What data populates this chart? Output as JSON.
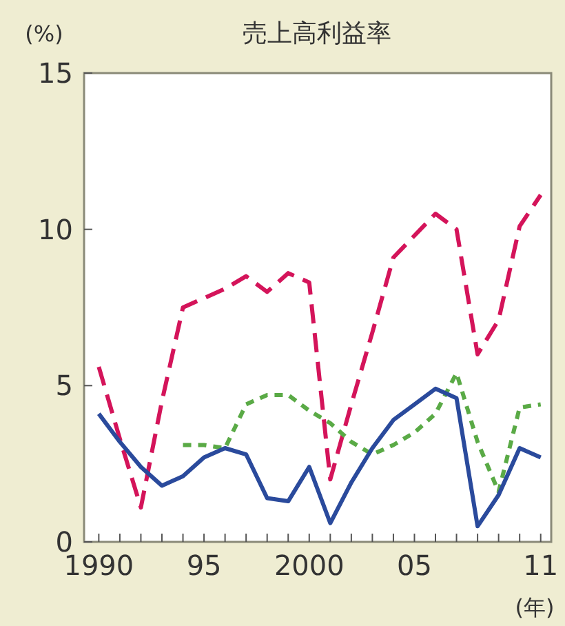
{
  "chart_data": {
    "type": "line",
    "title": "売上高利益率",
    "ylabel": "(%)",
    "xlabel": "(年)",
    "x": [
      1990,
      1991,
      1992,
      1993,
      1994,
      1995,
      1996,
      1997,
      1998,
      1999,
      2000,
      2001,
      2002,
      2003,
      2004,
      2005,
      2006,
      2007,
      2008,
      2009,
      2010,
      2011
    ],
    "series": [
      {
        "color": "#d4145a",
        "line_style": "dashed",
        "values": [
          5.6,
          3.3,
          1.1,
          4.5,
          7.5,
          7.8,
          8.1,
          8.5,
          8.0,
          8.6,
          8.3,
          2.0,
          4.4,
          6.7,
          9.1,
          9.8,
          10.5,
          10.0,
          6.0,
          7.1,
          10.1,
          11.1
        ]
      },
      {
        "color": "#5aaa46",
        "line_style": "dotted",
        "values": [
          null,
          null,
          null,
          null,
          3.1,
          3.1,
          3.0,
          4.4,
          4.7,
          4.7,
          4.2,
          3.8,
          3.2,
          2.8,
          3.1,
          3.5,
          4.1,
          5.4,
          3.2,
          1.6,
          4.3,
          4.4
        ]
      },
      {
        "color": "#2a4a9c",
        "line_style": "solid",
        "values": [
          4.1,
          3.2,
          2.4,
          1.8,
          2.1,
          2.7,
          3.0,
          2.8,
          1.4,
          1.3,
          2.4,
          0.6,
          1.9,
          3.0,
          3.9,
          4.4,
          4.9,
          4.6,
          0.5,
          1.5,
          3.0,
          2.7
        ]
      }
    ],
    "xlim": [
      1989.3,
      2011.5
    ],
    "ylim": [
      0,
      15
    ],
    "yticks": [
      0,
      5,
      10,
      15
    ],
    "xticks": [
      {
        "value": 1990,
        "label": "1990"
      },
      {
        "value": 1991,
        "label": null
      },
      {
        "value": 1992,
        "label": null
      },
      {
        "value": 1993,
        "label": null
      },
      {
        "value": 1994,
        "label": null
      },
      {
        "value": 1995,
        "label": "95"
      },
      {
        "value": 1996,
        "label": null
      },
      {
        "value": 1997,
        "label": null
      },
      {
        "value": 1998,
        "label": null
      },
      {
        "value": 1999,
        "label": null
      },
      {
        "value": 2000,
        "label": "2000"
      },
      {
        "value": 2001,
        "label": null
      },
      {
        "value": 2002,
        "label": null
      },
      {
        "value": 2003,
        "label": null
      },
      {
        "value": 2004,
        "label": null
      },
      {
        "value": 2005,
        "label": "05"
      },
      {
        "value": 2006,
        "label": null
      },
      {
        "value": 2007,
        "label": null
      },
      {
        "value": 2008,
        "label": null
      },
      {
        "value": 2009,
        "label": null
      },
      {
        "value": 2010,
        "label": null
      },
      {
        "value": 2011,
        "label": "11"
      }
    ],
    "grid": false
  }
}
